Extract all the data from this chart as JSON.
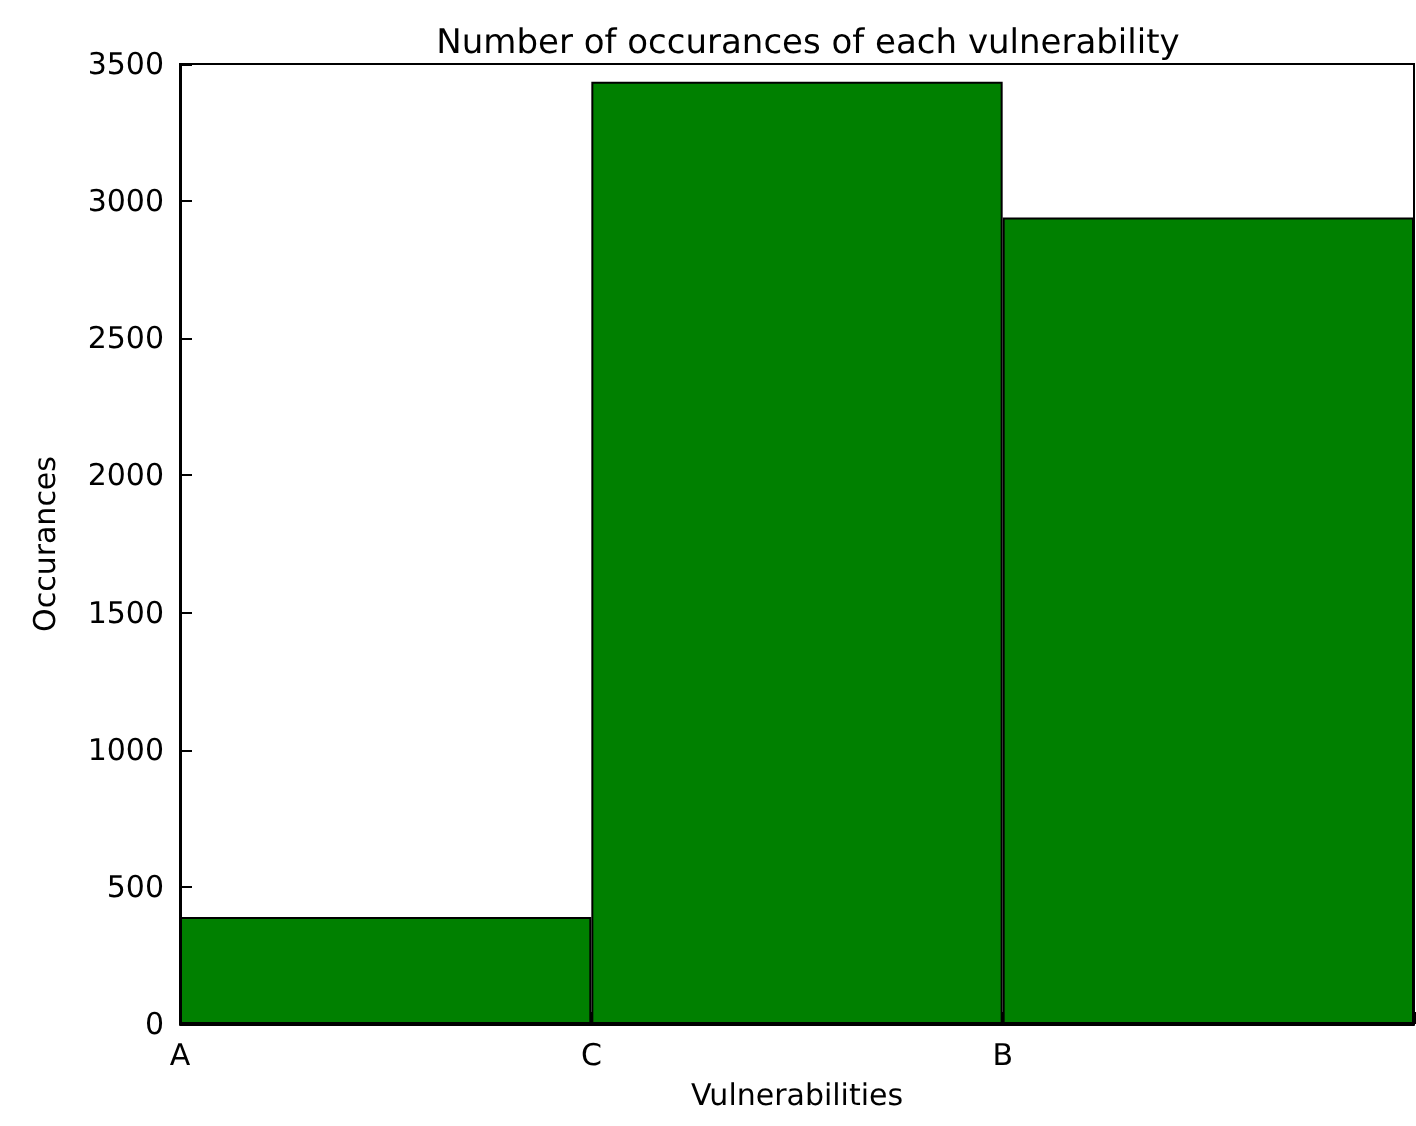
{
  "chart_data": {
    "type": "bar",
    "title": "Number of occurances of each vulnerability",
    "xlabel": "Vulnerabilities",
    "ylabel": "Occurances",
    "categories": [
      "A",
      "C",
      "B"
    ],
    "values": [
      390,
      3435,
      2940
    ],
    "color": "#008000",
    "ylim": [
      0,
      3500
    ],
    "yticks": [
      0,
      500,
      1000,
      1500,
      2000,
      2500,
      3000,
      3500
    ],
    "grid": false
  }
}
